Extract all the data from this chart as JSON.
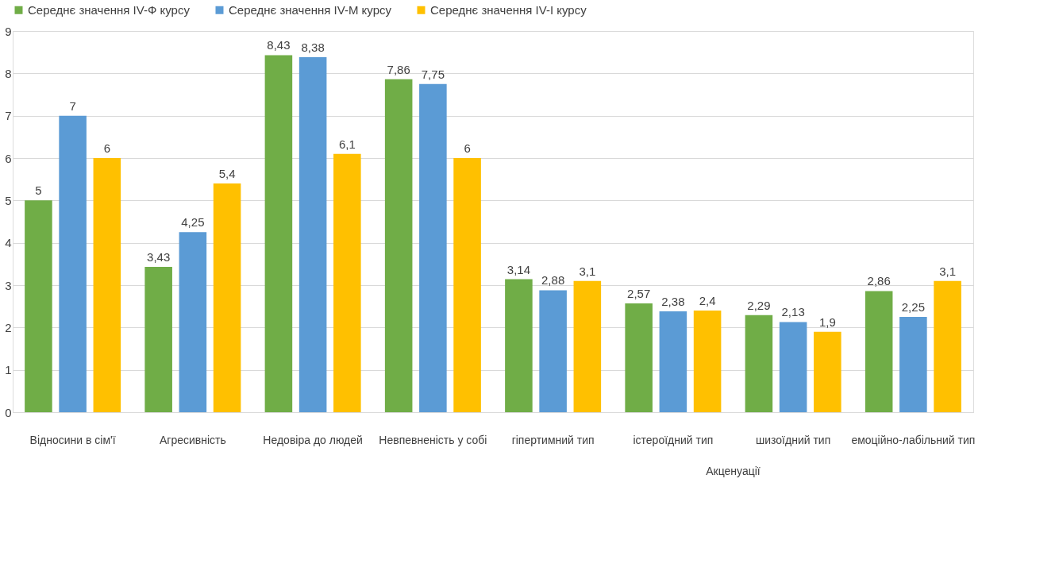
{
  "chart_data": {
    "type": "bar",
    "categories": [
      "Відносини в сім'ї",
      "Агресивність",
      "Недовіра до людей",
      "Невпевненість у собі",
      "гіпертимний тип",
      "істероїдний тип",
      "шизоїдний тип",
      "емоційно-лабільний тип"
    ],
    "series": [
      {
        "name": "Середнє значення IV-Ф курсу",
        "color": "#70ad47",
        "values": [
          5,
          3.43,
          8.43,
          7.86,
          3.14,
          2.57,
          2.29,
          2.86
        ],
        "value_labels": [
          "5",
          "3,43",
          "8,43",
          "7,86",
          "3,14",
          "2,57",
          "2,29",
          "2,86"
        ]
      },
      {
        "name": "Середнє значення IV-М курсу",
        "color": "#5b9bd5",
        "values": [
          7,
          4.25,
          8.38,
          7.75,
          2.88,
          2.38,
          2.13,
          2.25
        ],
        "value_labels": [
          "7",
          "4,25",
          "8,38",
          "7,75",
          "2,88",
          "2,38",
          "2,13",
          "2,25"
        ]
      },
      {
        "name": "Середнє значення IV-І курсу",
        "color": "#ffc000",
        "values": [
          6,
          5.4,
          6.1,
          6,
          3.1,
          2.4,
          1.9,
          3.1
        ],
        "value_labels": [
          "6",
          "5,4",
          "6,1",
          "6",
          "3,1",
          "2,4",
          "1,9",
          "3,1"
        ]
      }
    ],
    "ylim": [
      0,
      9
    ],
    "yticks": [
      0,
      1,
      2,
      3,
      4,
      5,
      6,
      7,
      8,
      9
    ],
    "grid": "y",
    "legend": "top",
    "annotations": [
      "Акценуації"
    ]
  }
}
